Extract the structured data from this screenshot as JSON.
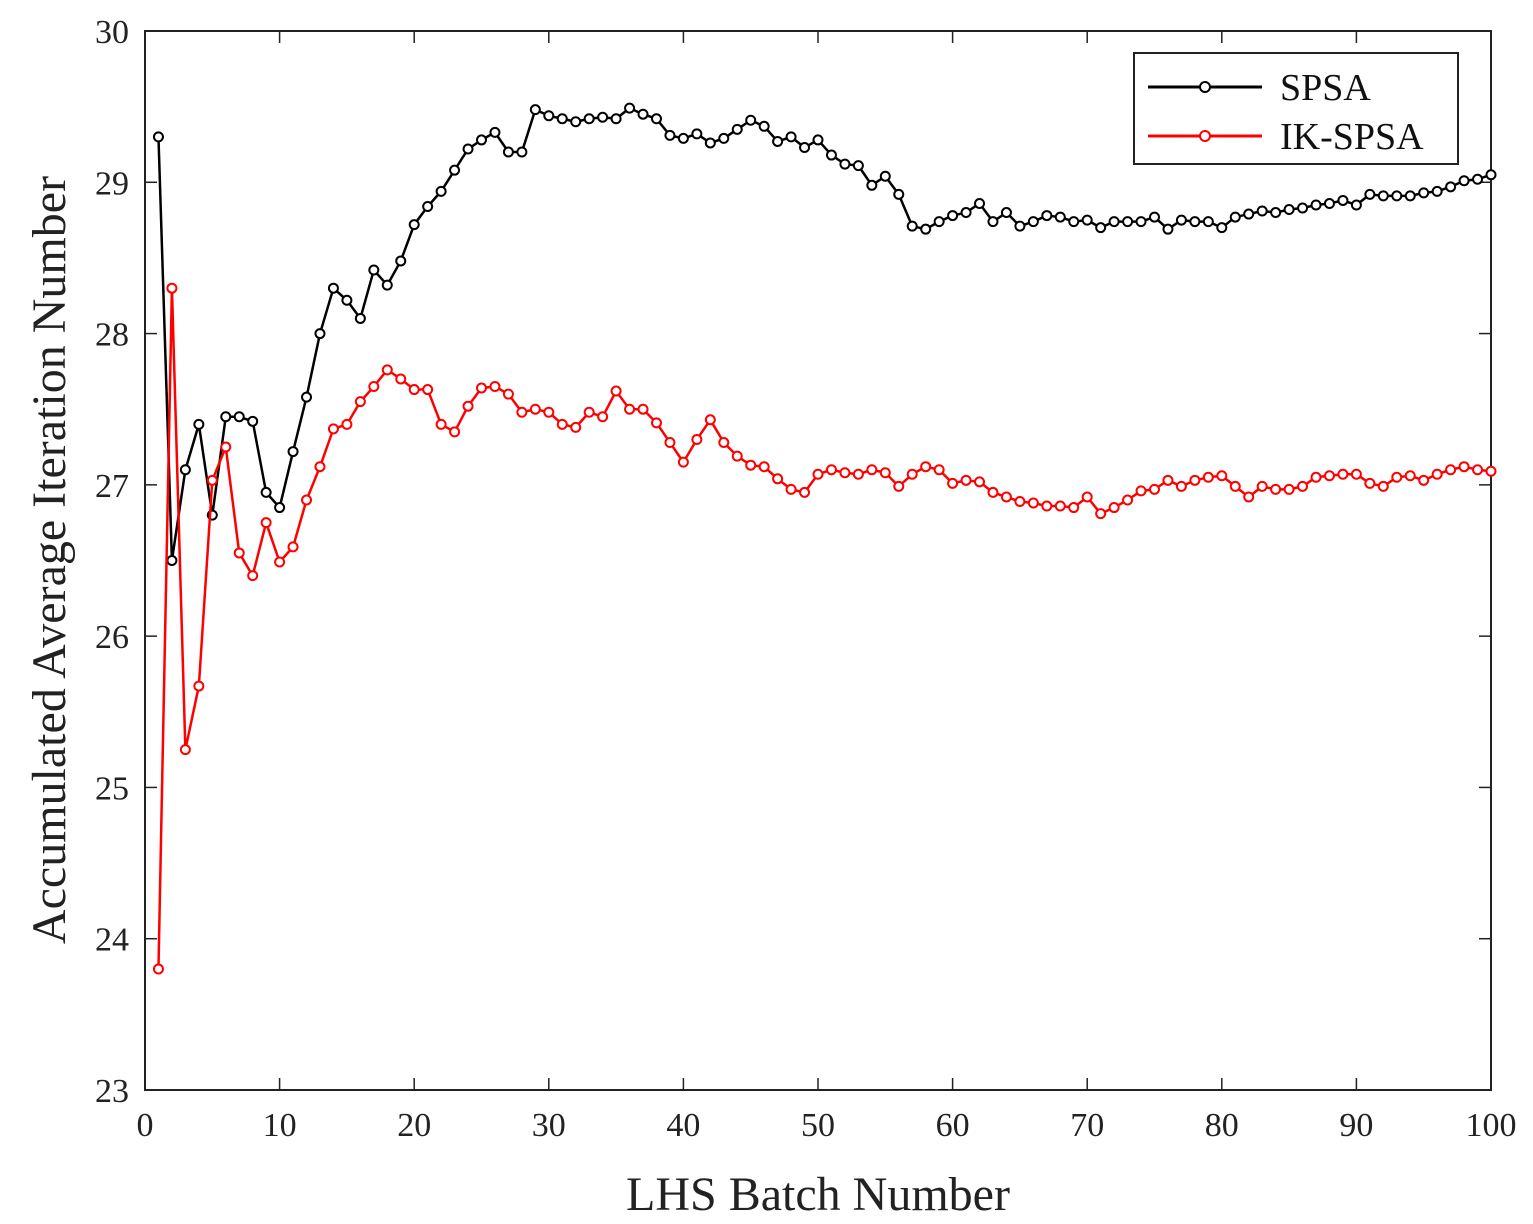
{
  "chart_data": {
    "type": "line",
    "xlabel": "LHS Batch Number",
    "ylabel": "Accumulated Average Iteration Number",
    "xlim": [
      0,
      100
    ],
    "ylim": [
      23,
      30
    ],
    "xticks": [
      0,
      10,
      20,
      30,
      40,
      50,
      60,
      70,
      80,
      90,
      100
    ],
    "yticks": [
      23,
      24,
      25,
      26,
      27,
      28,
      29,
      30
    ],
    "legend_position": "top-right",
    "grid": false,
    "marker": "circle",
    "series": [
      {
        "name": "SPSA",
        "color": "#000000",
        "x": [
          1,
          2,
          3,
          4,
          5,
          6,
          7,
          8,
          9,
          10,
          11,
          12,
          13,
          14,
          15,
          16,
          17,
          18,
          19,
          20,
          21,
          22,
          23,
          24,
          25,
          26,
          27,
          28,
          29,
          30,
          31,
          32,
          33,
          34,
          35,
          36,
          37,
          38,
          39,
          40,
          41,
          42,
          43,
          44,
          45,
          46,
          47,
          48,
          49,
          50,
          51,
          52,
          53,
          54,
          55,
          56,
          57,
          58,
          59,
          60,
          61,
          62,
          63,
          64,
          65,
          66,
          67,
          68,
          69,
          70,
          71,
          72,
          73,
          74,
          75,
          76,
          77,
          78,
          79,
          80,
          81,
          82,
          83,
          84,
          85,
          86,
          87,
          88,
          89,
          90,
          91,
          92,
          93,
          94,
          95,
          96,
          97,
          98,
          99,
          100
        ],
        "values": [
          29.3,
          26.5,
          27.1,
          27.4,
          26.8,
          27.45,
          27.45,
          27.42,
          26.95,
          26.85,
          27.22,
          27.58,
          28.0,
          28.3,
          28.22,
          28.1,
          28.42,
          28.32,
          28.48,
          28.72,
          28.84,
          28.94,
          29.08,
          29.22,
          29.28,
          29.33,
          29.2,
          29.2,
          29.48,
          29.44,
          29.42,
          29.4,
          29.42,
          29.43,
          29.42,
          29.49,
          29.45,
          29.42,
          29.31,
          29.29,
          29.32,
          29.26,
          29.29,
          29.35,
          29.41,
          29.37,
          29.27,
          29.3,
          29.23,
          29.28,
          29.18,
          29.12,
          29.11,
          28.98,
          29.04,
          28.92,
          28.71,
          28.69,
          28.74,
          28.78,
          28.8,
          28.86,
          28.74,
          28.8,
          28.71,
          28.74,
          28.78,
          28.77,
          28.74,
          28.75,
          28.7,
          28.74,
          28.74,
          28.74,
          28.77,
          28.69,
          28.75,
          28.74,
          28.74,
          28.7,
          28.77,
          28.79,
          28.81,
          28.8,
          28.82,
          28.83,
          28.85,
          28.86,
          28.88,
          28.85,
          28.92,
          28.91,
          28.91,
          28.91,
          28.93,
          28.94,
          28.97,
          29.01,
          29.02,
          29.05
        ]
      },
      {
        "name": "IK-SPSA",
        "color": "#ff0000",
        "x": [
          1,
          2,
          3,
          4,
          5,
          6,
          7,
          8,
          9,
          10,
          11,
          12,
          13,
          14,
          15,
          16,
          17,
          18,
          19,
          20,
          21,
          22,
          23,
          24,
          25,
          26,
          27,
          28,
          29,
          30,
          31,
          32,
          33,
          34,
          35,
          36,
          37,
          38,
          39,
          40,
          41,
          42,
          43,
          44,
          45,
          46,
          47,
          48,
          49,
          50,
          51,
          52,
          53,
          54,
          55,
          56,
          57,
          58,
          59,
          60,
          61,
          62,
          63,
          64,
          65,
          66,
          67,
          68,
          69,
          70,
          71,
          72,
          73,
          74,
          75,
          76,
          77,
          78,
          79,
          80,
          81,
          82,
          83,
          84,
          85,
          86,
          87,
          88,
          89,
          90,
          91,
          92,
          93,
          94,
          95,
          96,
          97,
          98,
          99,
          100
        ],
        "values": [
          23.8,
          28.3,
          25.25,
          25.67,
          27.03,
          27.25,
          26.55,
          26.4,
          26.75,
          26.49,
          26.59,
          26.9,
          27.12,
          27.37,
          27.4,
          27.55,
          27.65,
          27.76,
          27.7,
          27.63,
          27.63,
          27.4,
          27.35,
          27.52,
          27.64,
          27.65,
          27.6,
          27.48,
          27.5,
          27.48,
          27.4,
          27.38,
          27.48,
          27.45,
          27.62,
          27.5,
          27.5,
          27.41,
          27.28,
          27.15,
          27.3,
          27.43,
          27.28,
          27.19,
          27.13,
          27.12,
          27.04,
          26.97,
          26.95,
          27.07,
          27.1,
          27.08,
          27.07,
          27.1,
          27.08,
          26.99,
          27.07,
          27.12,
          27.1,
          27.01,
          27.03,
          27.02,
          26.95,
          26.92,
          26.89,
          26.88,
          26.86,
          26.86,
          26.85,
          26.92,
          26.81,
          26.85,
          26.9,
          26.96,
          26.97,
          27.03,
          26.99,
          27.03,
          27.05,
          27.06,
          26.99,
          26.92,
          26.99,
          26.97,
          26.97,
          26.99,
          27.05,
          27.06,
          27.07,
          27.07,
          27.01,
          26.99,
          27.05,
          27.06,
          27.03,
          27.07,
          27.1,
          27.12,
          27.1,
          27.09
        ]
      }
    ]
  }
}
